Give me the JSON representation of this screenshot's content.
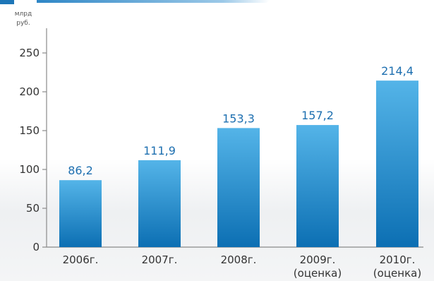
{
  "chart_data": {
    "type": "bar",
    "y_unit": [
      "млрд",
      "руб."
    ],
    "categories": [
      [
        "2006г."
      ],
      [
        "2007г."
      ],
      [
        "2008г."
      ],
      [
        "2009г.",
        "(оценка)"
      ],
      [
        "2010г.",
        "(оценка)"
      ]
    ],
    "values": [
      86.2,
      111.9,
      153.3,
      157.2,
      214.4
    ],
    "value_labels": [
      "86,2",
      "111,9",
      "153,3",
      "157,2",
      "214,4"
    ],
    "ylim": [
      0,
      250
    ],
    "yticks": [
      0,
      50,
      100,
      150,
      200,
      250
    ],
    "grid": false,
    "colors": {
      "bar_top": "#54b4e8",
      "bar_bottom": "#0c6fb3",
      "value_label": "#1d6fb0",
      "axis": "#8a8a8a"
    }
  }
}
